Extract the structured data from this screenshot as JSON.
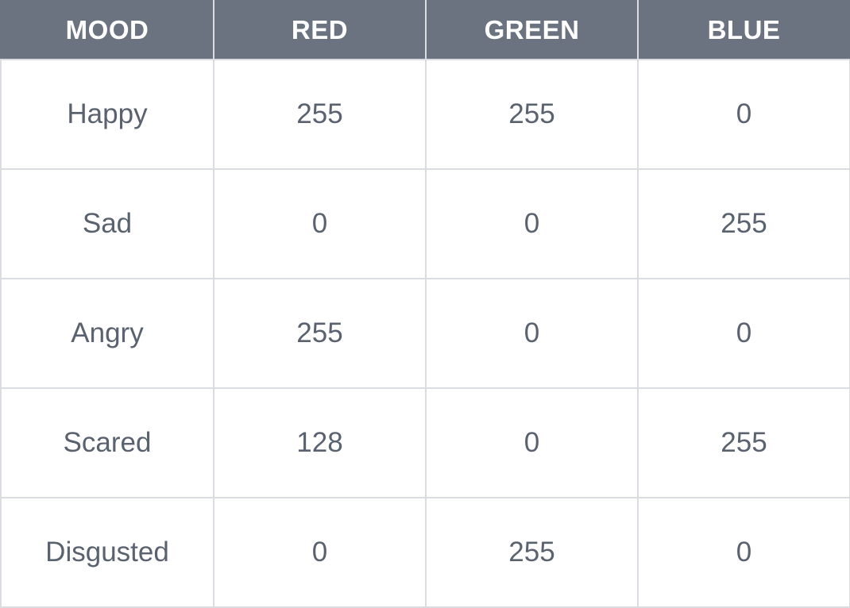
{
  "table": {
    "headers": [
      "MOOD",
      "RED",
      "GREEN",
      "BLUE"
    ],
    "rows": [
      [
        "Happy",
        "255",
        "255",
        "0"
      ],
      [
        "Sad",
        "0",
        "0",
        "255"
      ],
      [
        "Angry",
        "255",
        "0",
        "0"
      ],
      [
        "Scared",
        "128",
        "0",
        "255"
      ],
      [
        "Disgusted",
        "0",
        "255",
        "0"
      ]
    ]
  },
  "colors": {
    "header_background": "#6b7280",
    "header_text": "#ffffff",
    "cell_text": "#5a6270",
    "grid_line": "#d9dde2",
    "cell_background": "#ffffff"
  }
}
